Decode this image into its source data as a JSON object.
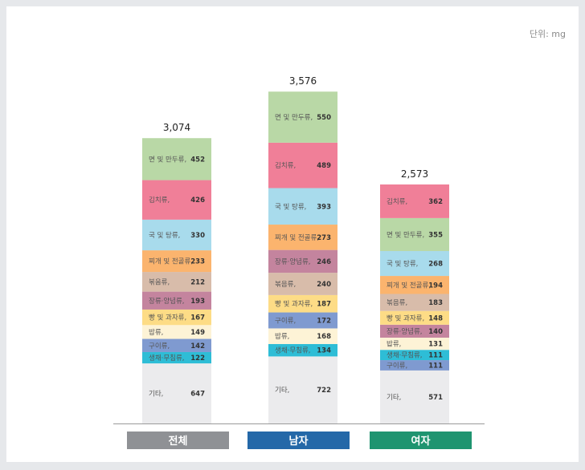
{
  "unit_label": "단위: mg",
  "chart_data": {
    "type": "bar",
    "stacked": true,
    "unit": "mg",
    "categories": [
      "전체",
      "남자",
      "여자"
    ],
    "category_colors": [
      "#8f9195",
      "#2468a8",
      "#1f9470"
    ],
    "totals": [
      "3,074",
      "3,576",
      "2,573"
    ],
    "bars": [
      {
        "category": "전체",
        "segments": [
          {
            "label": "기타,",
            "value": 647,
            "color": "#ebebed"
          },
          {
            "label": "생채·무침류,",
            "value": 122,
            "color": "#2ebdd6"
          },
          {
            "label": "구이류,",
            "value": 142,
            "color": "#7f9ad0"
          },
          {
            "label": "밥류,",
            "value": 149,
            "color": "#fdf3d6"
          },
          {
            "label": "빵 및 과자류,",
            "value": 167,
            "color": "#fddc86"
          },
          {
            "label": "장류·양념류,",
            "value": 193,
            "color": "#c4849e"
          },
          {
            "label": "볶음류,",
            "value": 212,
            "color": "#d8bcaa"
          },
          {
            "label": "찌개 및 전골류,",
            "value": 233,
            "color": "#fbb46e"
          },
          {
            "label": "국 및 탕류,",
            "value": 330,
            "color": "#a8dbec"
          },
          {
            "label": "김치류,",
            "value": 426,
            "color": "#f07f98"
          },
          {
            "label": "면 및 만두류,",
            "value": 452,
            "color": "#b9d8a6"
          }
        ]
      },
      {
        "category": "남자",
        "segments": [
          {
            "label": "기타,",
            "value": 722,
            "color": "#ebebed"
          },
          {
            "label": "생채·무침류,",
            "value": 134,
            "color": "#2ebdd6"
          },
          {
            "label": "밥류,",
            "value": 168,
            "color": "#fdf3d6"
          },
          {
            "label": "구이류,",
            "value": 172,
            "color": "#7f9ad0"
          },
          {
            "label": "빵 및 과자류,",
            "value": 187,
            "color": "#fddc86"
          },
          {
            "label": "볶음류,",
            "value": 240,
            "color": "#d8bcaa"
          },
          {
            "label": "장류·양념류,",
            "value": 246,
            "color": "#c4849e"
          },
          {
            "label": "찌개 및 전골류,",
            "value": 273,
            "color": "#fbb46e"
          },
          {
            "label": "국 및 탕류,",
            "value": 393,
            "color": "#a8dbec"
          },
          {
            "label": "김치류,",
            "value": 489,
            "color": "#f07f98"
          },
          {
            "label": "면 및 만두류,",
            "value": 550,
            "color": "#b9d8a6"
          }
        ]
      },
      {
        "category": "여자",
        "segments": [
          {
            "label": "기타,",
            "value": 571,
            "color": "#ebebed"
          },
          {
            "label": "구이류,",
            "value": 111,
            "color": "#7f9ad0"
          },
          {
            "label": "생채·무침류,",
            "value": 111,
            "color": "#2ebdd6"
          },
          {
            "label": "밥류,",
            "value": 131,
            "color": "#fdf3d6"
          },
          {
            "label": "장류·양념류,",
            "value": 140,
            "color": "#c4849e"
          },
          {
            "label": "빵 및 과자류,",
            "value": 148,
            "color": "#fddc86"
          },
          {
            "label": "볶음류,",
            "value": 183,
            "color": "#d8bcaa"
          },
          {
            "label": "찌개 및 전골류,",
            "value": 194,
            "color": "#fbb46e"
          },
          {
            "label": "국 및 탕류,",
            "value": 268,
            "color": "#a8dbec"
          },
          {
            "label": "면 및 만두류,",
            "value": 355,
            "color": "#b9d8a6"
          },
          {
            "label": "김치류,",
            "value": 362,
            "color": "#f07f98"
          }
        ]
      }
    ]
  }
}
